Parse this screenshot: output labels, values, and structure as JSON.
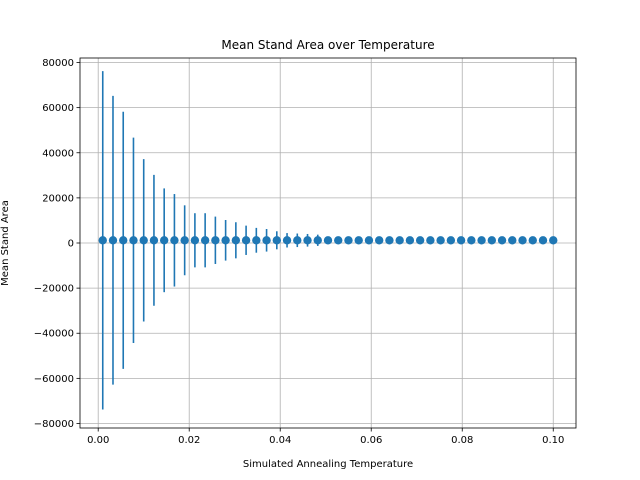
{
  "chart_data": {
    "type": "scatter",
    "title": "Mean Stand Area over Temperature",
    "xlabel": "Simulated Annealing Temperature",
    "ylabel": "Mean Stand Area",
    "xlim": [
      -0.004,
      0.105
    ],
    "ylim": [
      -82000,
      82000
    ],
    "grid": true,
    "xticks": [
      "0.00",
      "0.02",
      "0.04",
      "0.06",
      "0.08",
      "0.10"
    ],
    "xtick_values": [
      0,
      0.02,
      0.04,
      0.06,
      0.08,
      0.1
    ],
    "yticks": [
      "−80000",
      "−60000",
      "−40000",
      "−20000",
      "0",
      "20000",
      "40000",
      "60000",
      "80000"
    ],
    "ytick_values": [
      -80000,
      -60000,
      -40000,
      -20000,
      0,
      20000,
      40000,
      60000,
      80000
    ],
    "color": "#1f77b4",
    "series": [
      {
        "x": [
          0.001,
          0.00325,
          0.0055,
          0.00775,
          0.01,
          0.01225,
          0.0145,
          0.01675,
          0.019,
          0.02125,
          0.0235,
          0.02575,
          0.028,
          0.03025,
          0.0325,
          0.03475,
          0.037,
          0.03925,
          0.0415,
          0.04375,
          0.046,
          0.04825,
          0.0505,
          0.05275,
          0.055,
          0.05725,
          0.0595,
          0.06175,
          0.064,
          0.06625,
          0.0685,
          0.07075,
          0.073,
          0.07525,
          0.0775,
          0.07975,
          0.082,
          0.08425,
          0.0865,
          0.08875,
          0.091,
          0.09325,
          0.0955,
          0.09775,
          0.1
        ],
        "y": [
          1200,
          1200,
          1200,
          1200,
          1200,
          1200,
          1200,
          1200,
          1200,
          1200,
          1200,
          1200,
          1200,
          1200,
          1200,
          1200,
          1200,
          1200,
          1200,
          1200,
          1200,
          1200,
          1200,
          1200,
          1200,
          1200,
          1200,
          1200,
          1200,
          1200,
          1200,
          1200,
          1200,
          1200,
          1200,
          1200,
          1200,
          1200,
          1200,
          1200,
          1200,
          1200,
          1200,
          1200,
          1200
        ],
        "yerr": [
          75000,
          64000,
          57000,
          45500,
          36000,
          29000,
          23000,
          20500,
          15500,
          12000,
          12000,
          10500,
          9000,
          8000,
          6500,
          5500,
          5000,
          4000,
          3200,
          3000,
          2800,
          2500,
          1500,
          0,
          0,
          0,
          0,
          0,
          0,
          0,
          0,
          0,
          0,
          0,
          0,
          0,
          0,
          0,
          0,
          0,
          0,
          0,
          0,
          0,
          0
        ]
      }
    ]
  }
}
